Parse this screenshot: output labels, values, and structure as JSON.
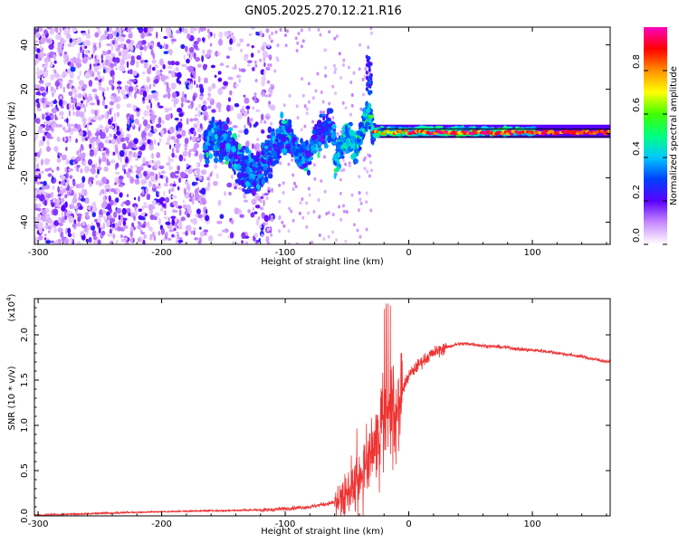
{
  "title": "GN05.2025.270.12.21.R16",
  "colors": {
    "snr_line": "#ee3333",
    "band_line": "#000000"
  },
  "chart_data": [
    {
      "type": "heatmap",
      "name": "spectrogram",
      "xlabel": "Height of straight line (km)",
      "ylabel": "Frequency (Hz)",
      "xlim": [
        -303,
        163
      ],
      "ylim": [
        -50,
        48
      ],
      "xticks": [
        -300,
        -200,
        -100,
        0,
        100
      ],
      "yticks": [
        -40,
        -20,
        0,
        20,
        40
      ],
      "colorbar": {
        "label": "Normalized spectral amplitude",
        "range": [
          0,
          1
        ],
        "ticks": [
          "0.0",
          "0.2",
          "0.4",
          "0.6",
          "0.8"
        ]
      },
      "features": [
        {
          "name": "noise field",
          "x_range": [
            -303,
            -120
          ],
          "y_range": [
            -50,
            48
          ],
          "amplitude": "0.05-0.25"
        },
        {
          "name": "carrier emergence",
          "x_range": [
            -165,
            -30
          ],
          "y_center": "-15 to +10",
          "amplitude": "0.2-0.5"
        },
        {
          "name": "scintillation spike",
          "x": -32,
          "y_range": [
            20,
            35
          ],
          "amplitude": "0.3"
        },
        {
          "name": "carrier line",
          "x_range": [
            -25,
            163
          ],
          "y": 0,
          "amplitude": "0.7-1.0"
        }
      ]
    },
    {
      "type": "line",
      "name": "snr",
      "xlabel": "Height of straight line (km)",
      "ylabel": "SNR (10 * v/v)",
      "yscale_label": "(x10",
      "yscale_exp": "4",
      "xlim": [
        -303,
        163
      ],
      "ylim": [
        0,
        2.4
      ],
      "xticks": [
        -300,
        -200,
        -100,
        0,
        100
      ],
      "yticks": [
        "0.0",
        "0.5",
        "1.0",
        "1.5",
        "2.0"
      ],
      "series": [
        {
          "name": "SNR",
          "x": [
            -303,
            -250,
            -200,
            -150,
            -120,
            -100,
            -80,
            -60,
            -50,
            -40,
            -35,
            -30,
            -25,
            -20,
            -15,
            -10,
            -5,
            0,
            10,
            20,
            30,
            40,
            50,
            60,
            70,
            80,
            90,
            100,
            110,
            120,
            130,
            140,
            150,
            163
          ],
          "y": [
            0.0,
            0.02,
            0.04,
            0.05,
            0.06,
            0.08,
            0.1,
            0.15,
            0.25,
            0.4,
            0.55,
            0.7,
            0.9,
            1.1,
            1.1,
            1.2,
            1.4,
            1.55,
            1.7,
            1.8,
            1.86,
            1.9,
            1.9,
            1.88,
            1.87,
            1.86,
            1.84,
            1.83,
            1.82,
            1.8,
            1.78,
            1.76,
            1.73,
            1.7
          ]
        }
      ]
    }
  ]
}
